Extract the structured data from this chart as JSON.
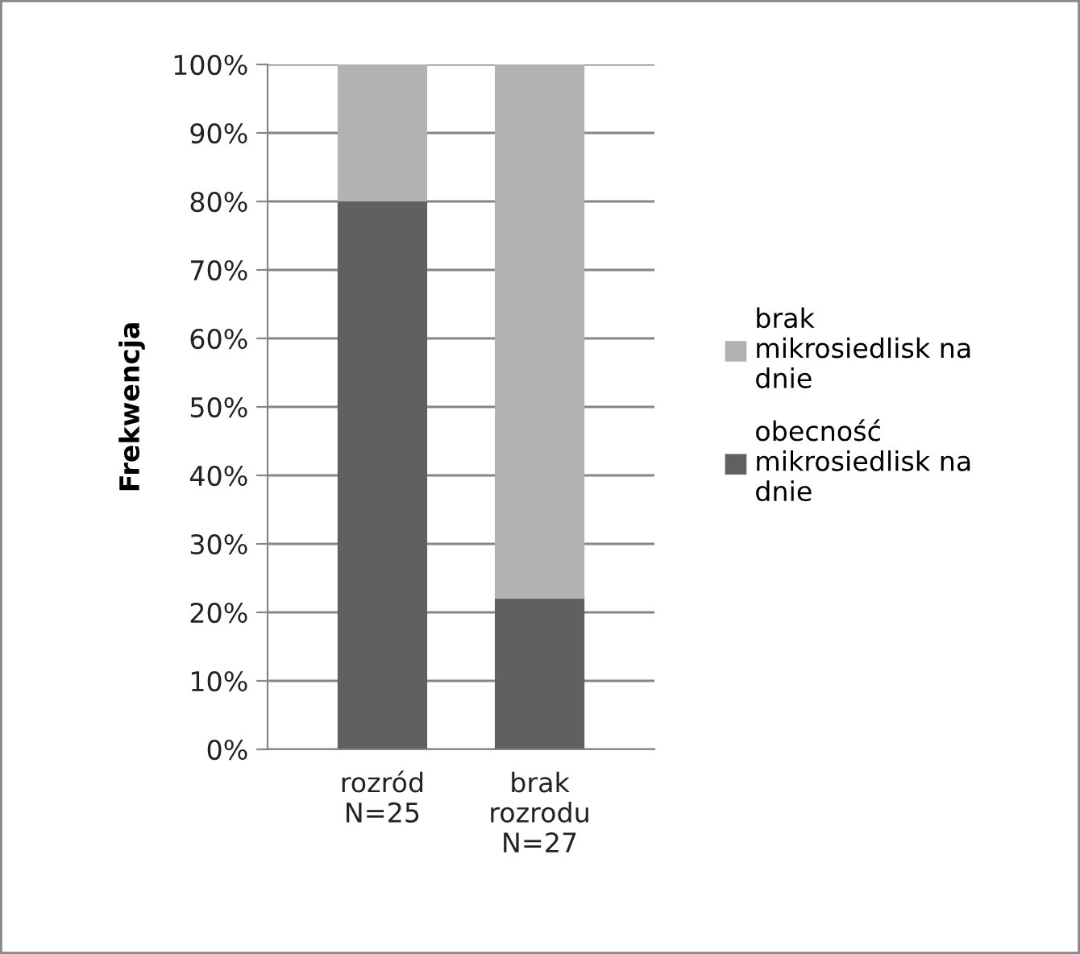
{
  "chart_data": {
    "type": "bar",
    "stacked": true,
    "ylabel": "Frekwencja",
    "categories": [
      "rozród\nN=25",
      "brak\nrozrodu\nN=27"
    ],
    "series": [
      {
        "name": "obecność\nmikrosiedlisk na\ndnie",
        "color": "#606060",
        "values": [
          80,
          22
        ]
      },
      {
        "name": "brak\nmikrosiedlisk na\ndnie",
        "color": "#b2b2b2",
        "values": [
          20,
          78
        ]
      }
    ],
    "ylim": [
      0,
      100
    ],
    "yticks": [
      {
        "value": 0,
        "label": "0%"
      },
      {
        "value": 10,
        "label": "10%"
      },
      {
        "value": 20,
        "label": "20%"
      },
      {
        "value": 30,
        "label": "30%"
      },
      {
        "value": 40,
        "label": "40%"
      },
      {
        "value": 50,
        "label": "50%"
      },
      {
        "value": 60,
        "label": "60%"
      },
      {
        "value": 70,
        "label": "70%"
      },
      {
        "value": 80,
        "label": "80%"
      },
      {
        "value": 90,
        "label": "90%"
      },
      {
        "value": 100,
        "label": "100%"
      }
    ],
    "grid": "y",
    "legend": "right"
  }
}
